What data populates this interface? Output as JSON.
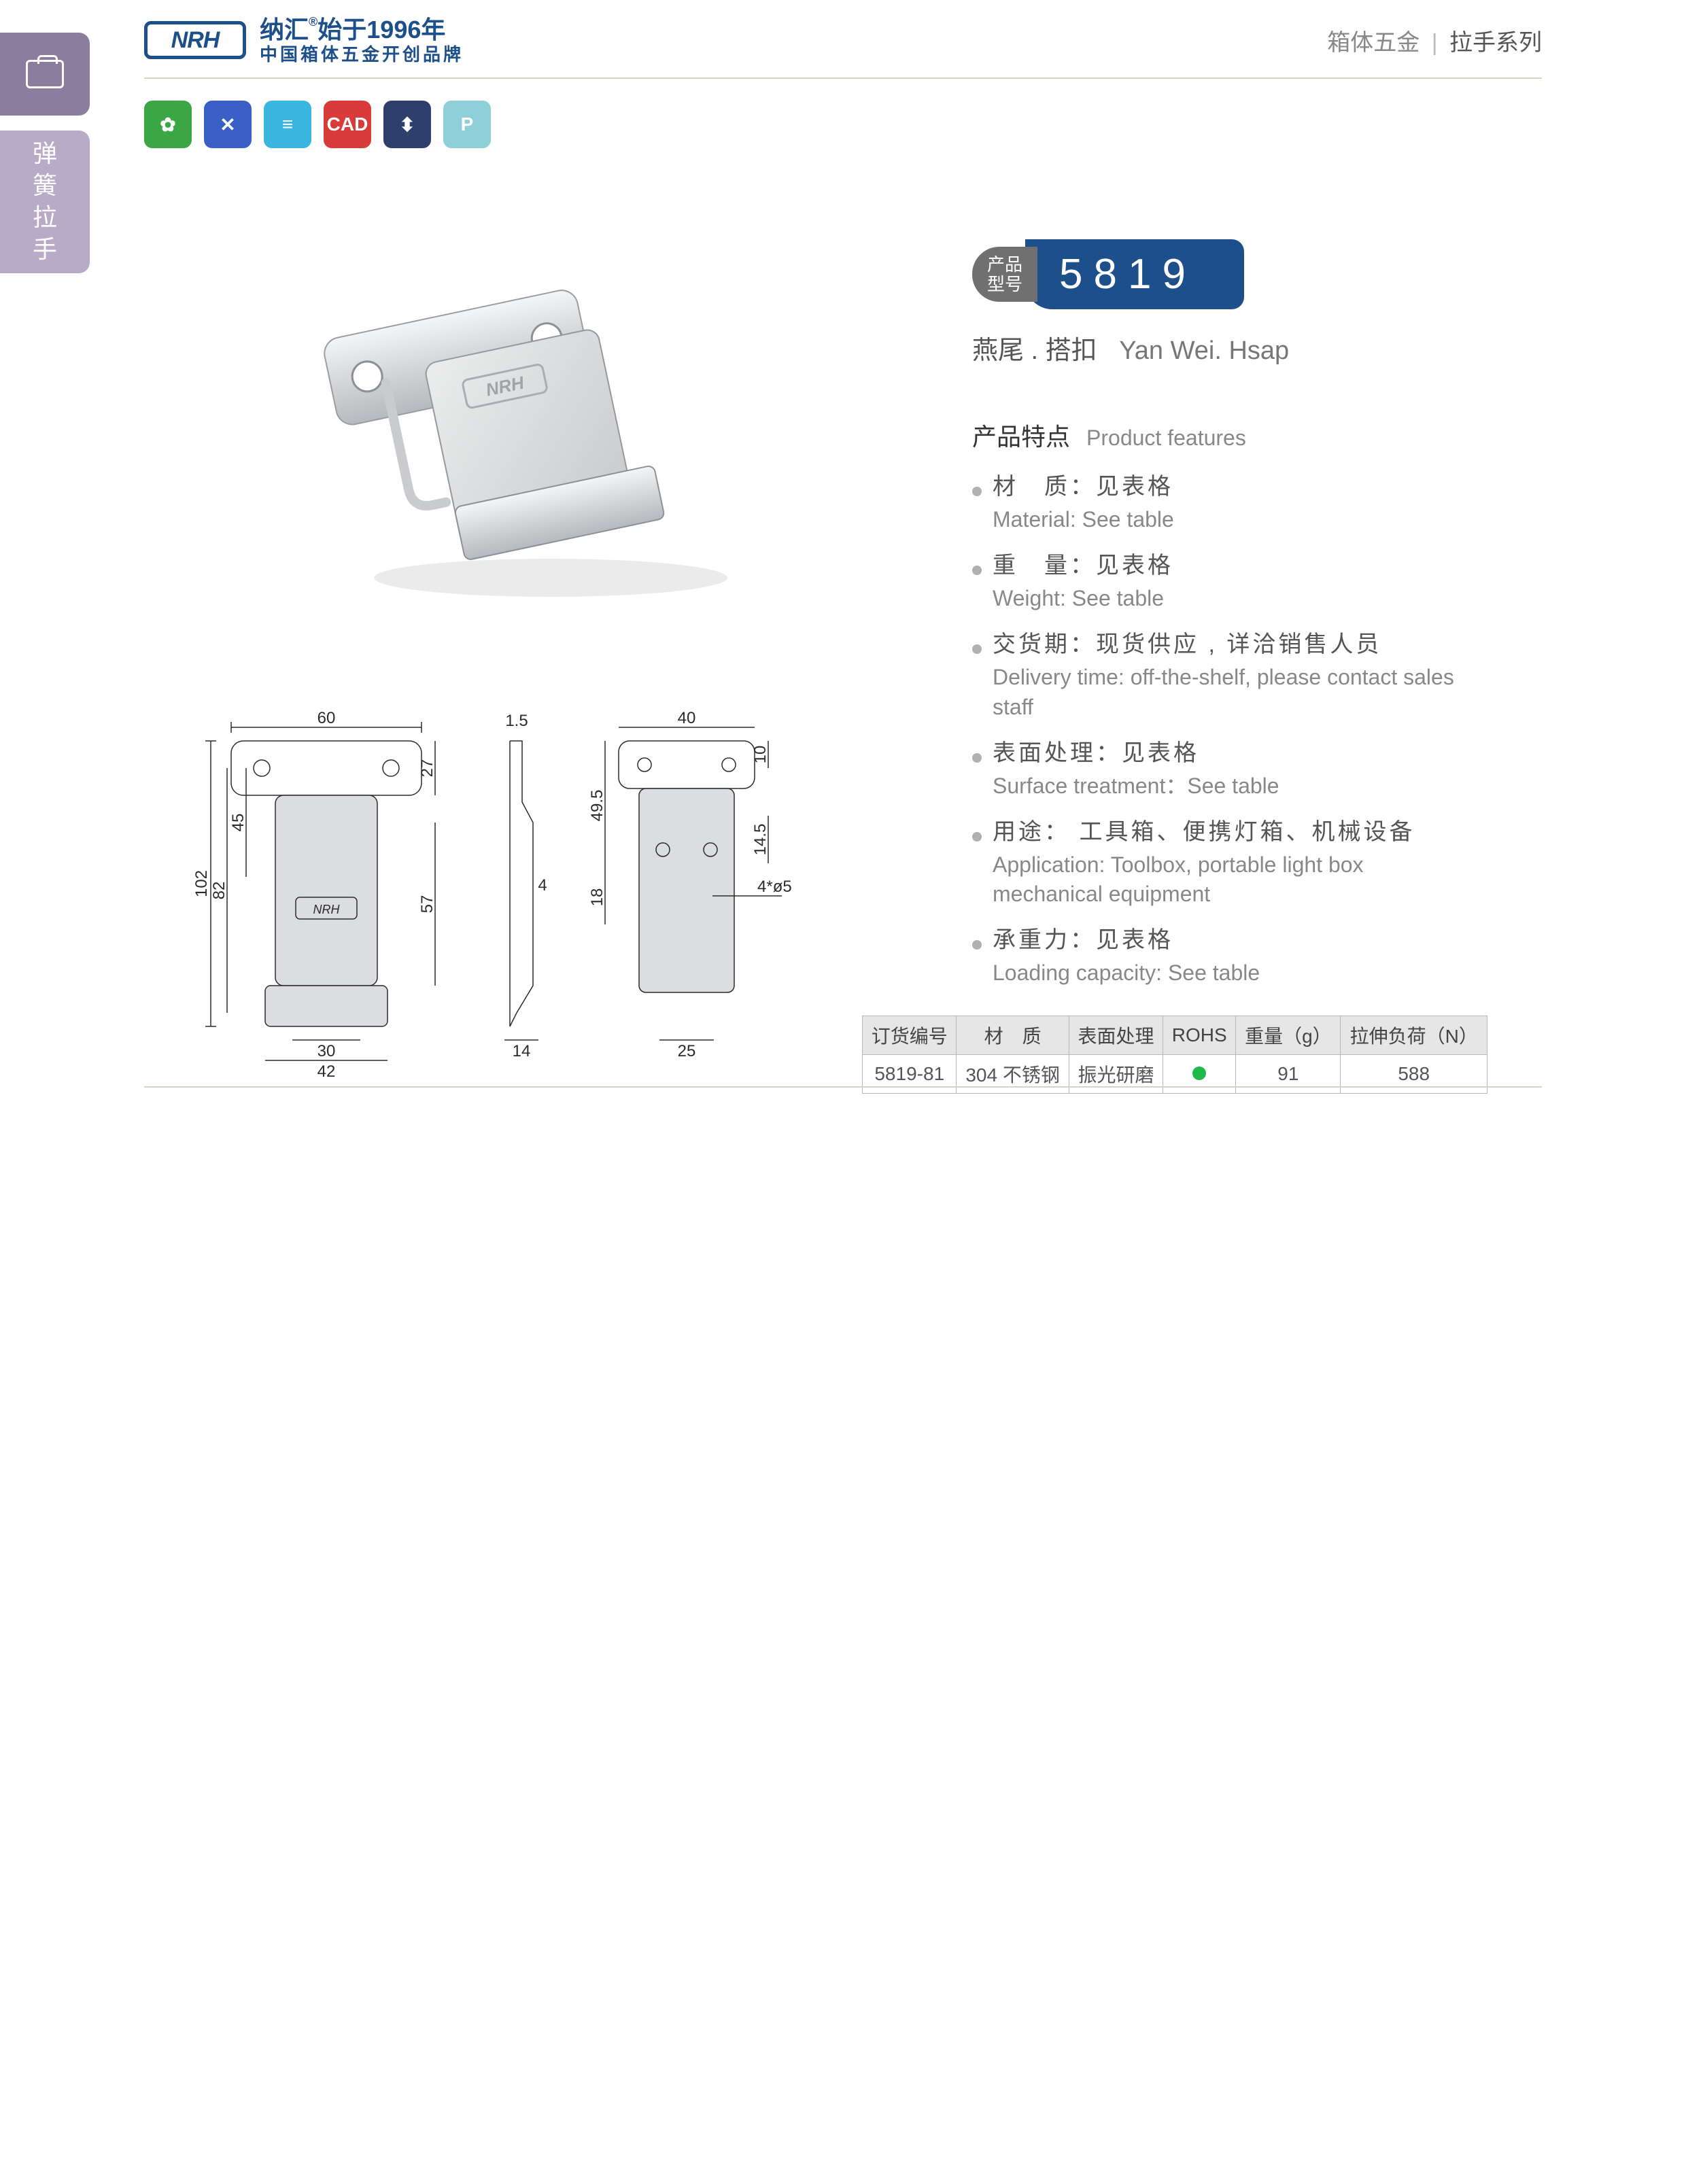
{
  "sidebar": {
    "label_chars": [
      "弹",
      "簧",
      "拉",
      "手"
    ]
  },
  "header": {
    "logo": "NRH",
    "line1_a": "纳汇",
    "line1_reg": "®",
    "line1_b": "始于1996年",
    "line2": "中国箱体五金开创品牌",
    "crumb1": "箱体五金",
    "crumb2": "拉手系列"
  },
  "icons": {
    "i1": "✿",
    "i2": "✕",
    "i3": "≡",
    "i4": "CAD",
    "i5": "⬍",
    "i6": "P"
  },
  "model": {
    "label1": "产品",
    "label2": "型号",
    "number": "5819"
  },
  "name": {
    "cn": "燕尾 . 搭扣",
    "en": "Yan Wei. Hsap"
  },
  "features": {
    "title_cn": "产品特点",
    "title_en": "Product features",
    "items": [
      {
        "cn": "材　质：见表格",
        "en": "Material: See table"
      },
      {
        "cn": "重　量：见表格",
        "en": "Weight: See table"
      },
      {
        "cn": "交货期：现货供应 , 详洽销售人员",
        "en": "Delivery time: off-the-shelf, please contact sales staff"
      },
      {
        "cn": "表面处理：见表格",
        "en": "Surface treatment：See table"
      },
      {
        "cn": "用途： 工具箱、便携灯箱、机械设备",
        "en": "Application: Toolbox, portable light box mechanical equipment"
      },
      {
        "cn": "承重力：见表格",
        "en": "Loading capacity: See table"
      }
    ]
  },
  "table": {
    "headers": [
      "订货编号",
      "材　质",
      "表面处理",
      "ROHS",
      "重量（g）",
      "拉伸负荷（N）"
    ],
    "row": {
      "code": "5819-81",
      "material": "304 不锈钢",
      "surface": "振光研磨",
      "weight": "91",
      "load": "588"
    }
  },
  "dims": {
    "d60": "60",
    "d1_5": "1.5",
    "d40": "40",
    "d102": "102",
    "d82": "82",
    "d45": "45",
    "d27": "27",
    "d57": "57",
    "d30": "30",
    "d42": "42",
    "d14": "14",
    "d49_5": "49.5",
    "d18": "18",
    "d4": "4",
    "d10": "10",
    "d14_5": "14.5",
    "d25": "25",
    "d4phi5": "4*ø5"
  },
  "colors": {
    "brand": "#1d4f8b",
    "grey": "#707070",
    "metal1": "#e8e8ea",
    "metal2": "#bfc2c6",
    "metal3": "#d8dadd",
    "line": "#2b2b2b"
  }
}
